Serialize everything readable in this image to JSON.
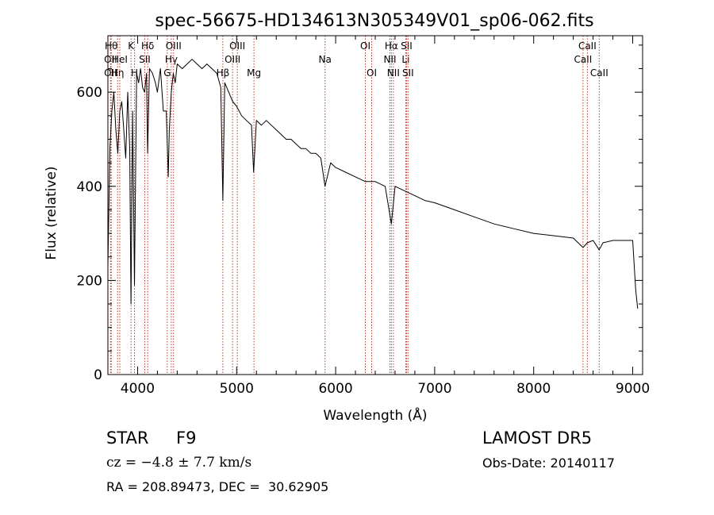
{
  "chart_data": {
    "type": "line",
    "title": "spec-56675-HD134613N305349V01_sp06-062.fits",
    "xlabel": "Wavelength (Å)",
    "ylabel": "Flux (relative)",
    "xlim": [
      3700,
      9100
    ],
    "ylim": [
      0,
      720
    ],
    "xticks": [
      4000,
      5000,
      6000,
      7000,
      8000,
      9000
    ],
    "yticks": [
      0,
      200,
      400,
      600
    ],
    "grid": false,
    "series": [
      {
        "x": [
          3700,
          3720,
          3740,
          3760,
          3780,
          3800,
          3820,
          3840,
          3860,
          3880,
          3900,
          3920,
          3933,
          3950,
          3968,
          3990,
          4010,
          4030,
          4050,
          4070,
          4090,
          4101,
          4120,
          4150,
          4180,
          4200,
          4230,
          4260,
          4290,
          4310,
          4320,
          4340,
          4360,
          4380,
          4400,
          4450,
          4500,
          4550,
          4600,
          4650,
          4700,
          4750,
          4800,
          4840,
          4861,
          4880,
          4920,
          4960,
          5000,
          5050,
          5100,
          5150,
          5172,
          5200,
          5250,
          5300,
          5350,
          5400,
          5450,
          5500,
          5550,
          5600,
          5650,
          5700,
          5750,
          5800,
          5850,
          5893,
          5950,
          6000,
          6100,
          6200,
          6300,
          6400,
          6500,
          6563,
          6600,
          6700,
          6800,
          6900,
          7000,
          7200,
          7400,
          7600,
          7800,
          8000,
          8200,
          8400,
          8498,
          8542,
          8600,
          8662,
          8700,
          8800,
          8900,
          9000,
          9030,
          9050
        ],
        "y": [
          230,
          480,
          560,
          600,
          520,
          470,
          560,
          580,
          520,
          460,
          600,
          480,
          150,
          560,
          190,
          640,
          620,
          650,
          610,
          600,
          640,
          470,
          650,
          640,
          620,
          600,
          650,
          560,
          560,
          420,
          520,
          600,
          640,
          620,
          660,
          650,
          660,
          670,
          660,
          650,
          660,
          650,
          640,
          610,
          370,
          620,
          600,
          580,
          570,
          550,
          540,
          530,
          430,
          540,
          530,
          540,
          530,
          520,
          510,
          500,
          500,
          490,
          480,
          480,
          470,
          470,
          460,
          400,
          450,
          440,
          430,
          420,
          410,
          410,
          400,
          320,
          400,
          390,
          380,
          370,
          365,
          350,
          335,
          320,
          310,
          300,
          295,
          290,
          270,
          280,
          285,
          265,
          280,
          285,
          285,
          285,
          180,
          140
        ]
      }
    ],
    "lines": [
      {
        "x": 3734,
        "label": "Hθ",
        "row": 0
      },
      {
        "x": 3727,
        "label": "OII",
        "row": 1
      },
      {
        "x": 3727,
        "label": "OII",
        "row": 2
      },
      {
        "x": 3798,
        "label": "Hη",
        "row": 2
      },
      {
        "x": 3820,
        "label": "HeI",
        "row": 1
      },
      {
        "x": 3934,
        "label": "K",
        "row": 0
      },
      {
        "x": 3969,
        "label": "H",
        "row": 2
      },
      {
        "x": 4072,
        "label": "SII",
        "row": 1
      },
      {
        "x": 4102,
        "label": "Hδ",
        "row": 0
      },
      {
        "x": 4300,
        "label": "G",
        "row": 2
      },
      {
        "x": 4340,
        "label": "Hγ",
        "row": 1
      },
      {
        "x": 4363,
        "label": "OIII",
        "row": 0
      },
      {
        "x": 4861,
        "label": "Hβ",
        "row": 2
      },
      {
        "x": 4959,
        "label": "OIII",
        "row": 1
      },
      {
        "x": 5007,
        "label": "OIII",
        "row": 0
      },
      {
        "x": 5175,
        "label": "Mg",
        "row": 2
      },
      {
        "x": 5893,
        "label": "Na",
        "row": 1
      },
      {
        "x": 6300,
        "label": "OI",
        "row": 0
      },
      {
        "x": 6364,
        "label": "OI",
        "row": 2
      },
      {
        "x": 6548,
        "label": "NII",
        "row": 1
      },
      {
        "x": 6563,
        "label": "Hα",
        "row": 0
      },
      {
        "x": 6583,
        "label": "NII",
        "row": 2
      },
      {
        "x": 6708,
        "label": "Li",
        "row": 1
      },
      {
        "x": 6716,
        "label": "SII",
        "row": 0
      },
      {
        "x": 6731,
        "label": "SII",
        "row": 2
      },
      {
        "x": 8498,
        "label": "CaII",
        "row": 1
      },
      {
        "x": 8542,
        "label": "CaII",
        "row": 0
      },
      {
        "x": 8662,
        "label": "CaII",
        "row": 2
      }
    ]
  },
  "info": {
    "object_class": "STAR",
    "subclass": "F9",
    "survey": "LAMOST DR5",
    "cz": "cz = −4.8 ± 7.7 km/s",
    "obs_date": "Obs-Date: 20140117",
    "coords": "RA = 208.89473, DEC =  30.62905"
  },
  "colors": {
    "line_marker": "#c0392b",
    "spectrum": "#000000"
  }
}
